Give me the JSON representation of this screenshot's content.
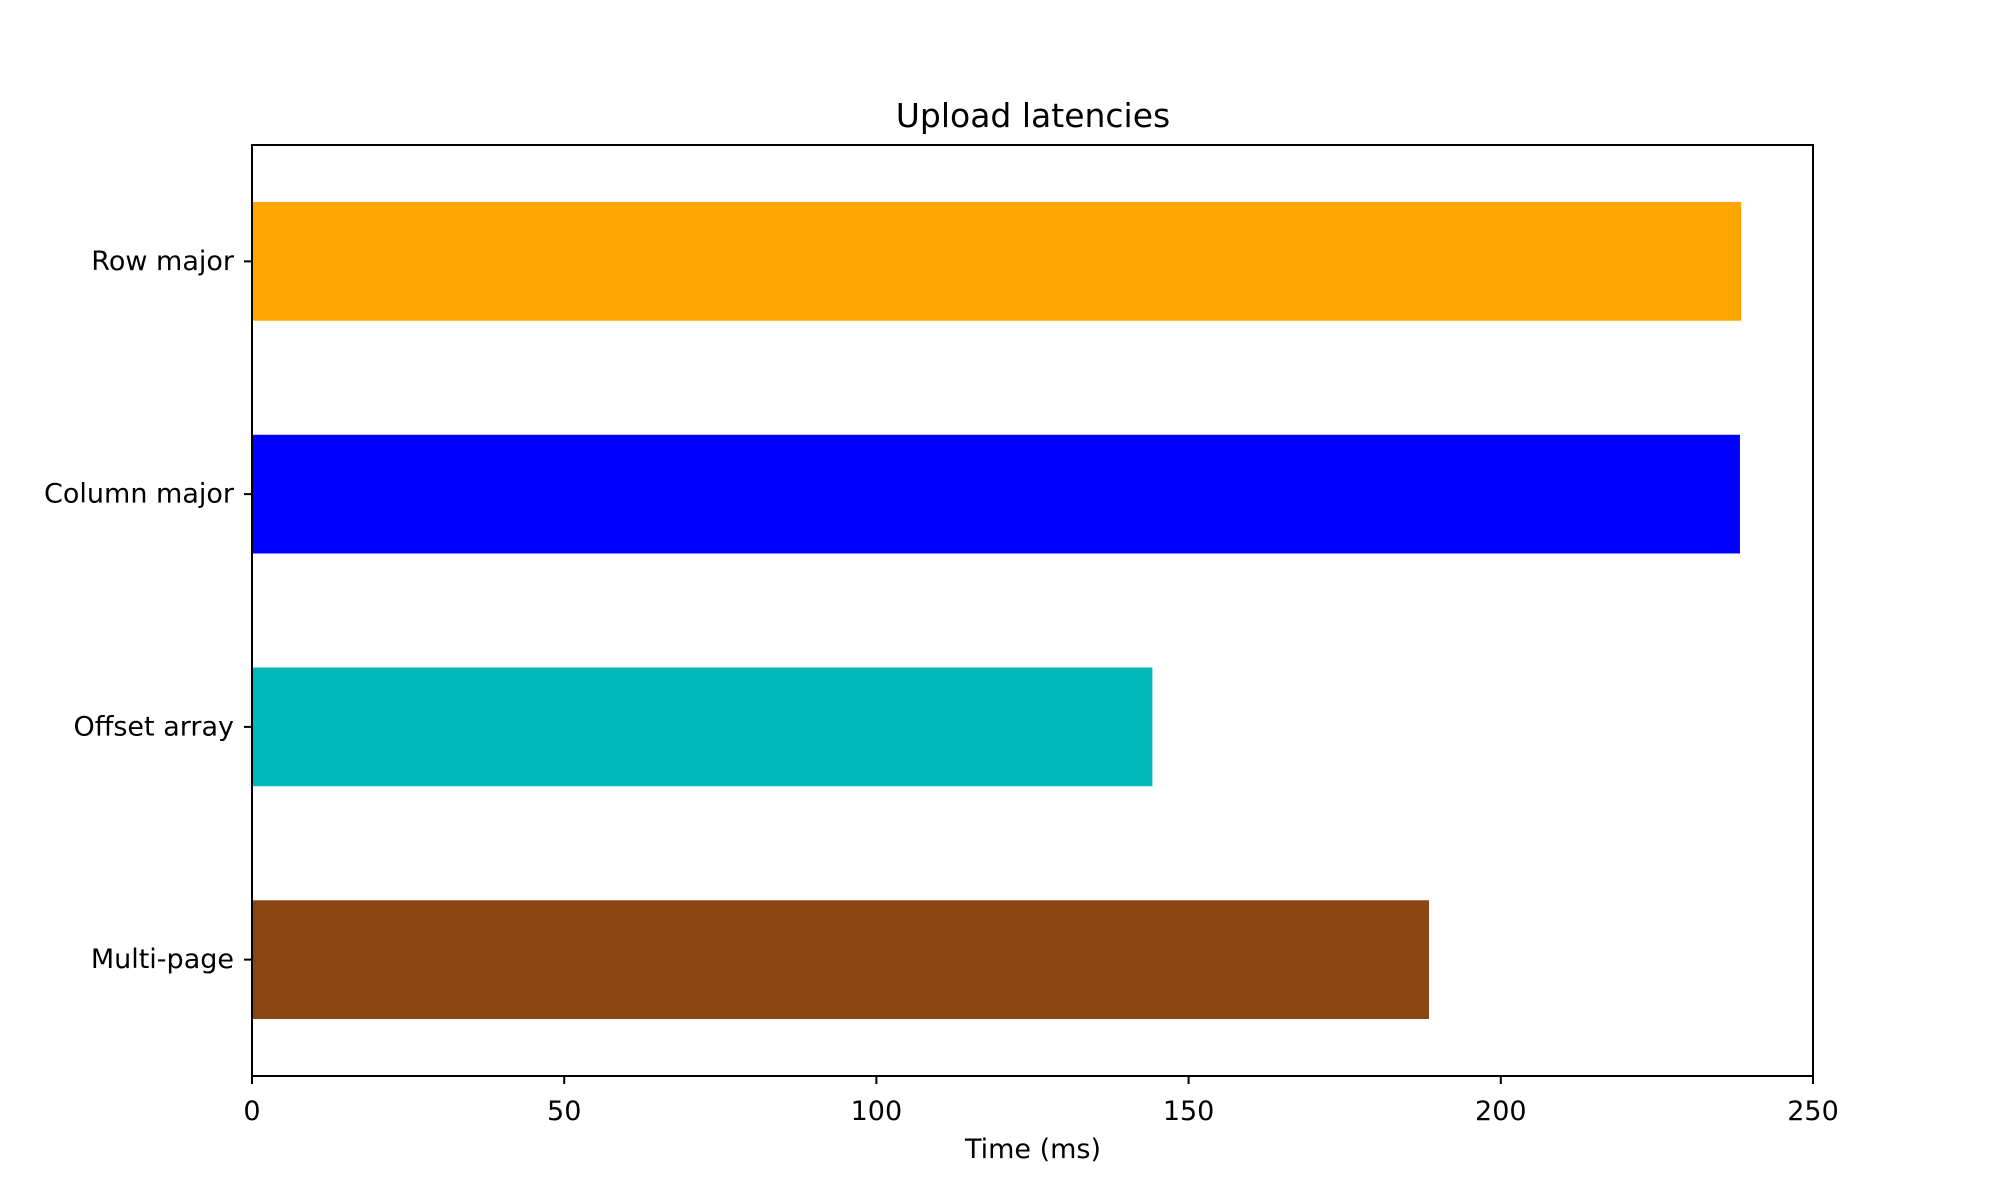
{
  "chart_data": {
    "type": "bar",
    "orientation": "horizontal",
    "title": "Upload latencies",
    "xlabel": "Time (ms)",
    "ylabel": "",
    "categories": [
      "Row major",
      "Column major",
      "Offset array",
      "Multi-page"
    ],
    "values": [
      238.5,
      238.3,
      144.2,
      188.5
    ],
    "colors": [
      "#FFA500",
      "#0000FF",
      "#00B8B8",
      "#8B4513"
    ],
    "xlim": [
      0,
      250
    ],
    "xticks": [
      0,
      50,
      100,
      150,
      200,
      250
    ],
    "grid": false,
    "legend": "none"
  }
}
